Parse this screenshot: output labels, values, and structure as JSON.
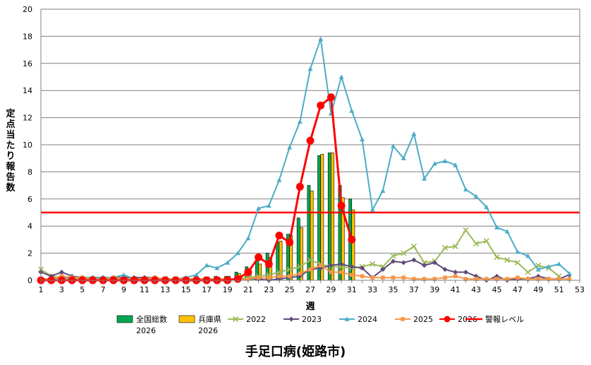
{
  "chart_data": {
    "type": "bar+line",
    "title": "手足口病(姫路市)",
    "xlabel": "週",
    "ylabel": "定点当たり報告数",
    "ylim": [
      0,
      20
    ],
    "yticks": [
      0,
      2,
      4,
      6,
      8,
      10,
      12,
      14,
      16,
      18,
      20
    ],
    "xlim": [
      1,
      53
    ],
    "xticks": [
      1,
      3,
      5,
      7,
      9,
      11,
      13,
      15,
      17,
      19,
      21,
      23,
      25,
      27,
      29,
      31,
      33,
      35,
      37,
      39,
      41,
      43,
      45,
      47,
      49,
      51,
      53
    ],
    "grid": "horizontal",
    "legend_position": "bottom",
    "bar_series": [
      {
        "name": "全国総数",
        "name2": "2026",
        "color": "#00a651",
        "x": [
          1,
          2,
          3,
          4,
          5,
          6,
          7,
          8,
          9,
          10,
          11,
          12,
          13,
          14,
          15,
          16,
          17,
          18,
          19,
          20,
          21,
          22,
          23,
          24,
          25,
          26,
          27,
          28,
          29,
          30,
          31
        ],
        "values": [
          0.1,
          0.1,
          0.1,
          0.1,
          0.1,
          0.1,
          0.1,
          0.1,
          0.1,
          0.1,
          0.1,
          0.1,
          0.1,
          0.1,
          0.1,
          0.1,
          0.2,
          0.3,
          0.3,
          0.6,
          1.0,
          1.5,
          2.0,
          2.8,
          3.4,
          4.6,
          7.0,
          9.2,
          9.4,
          7.0,
          6.0
        ]
      },
      {
        "name": "兵庫県",
        "name2": "2026",
        "color": "#ffc000",
        "x": [
          1,
          2,
          3,
          4,
          5,
          6,
          7,
          8,
          9,
          10,
          11,
          12,
          13,
          14,
          15,
          16,
          17,
          18,
          19,
          20,
          21,
          22,
          23,
          24,
          25,
          26,
          27,
          28,
          29,
          30,
          31
        ],
        "values": [
          0.1,
          0.1,
          0.1,
          0.1,
          0.1,
          0.1,
          0.1,
          0.1,
          0.1,
          0.1,
          0.1,
          0.1,
          0.1,
          0.1,
          0.1,
          0.1,
          0.2,
          0.2,
          0.3,
          0.5,
          0.8,
          1.2,
          1.7,
          2.9,
          3.3,
          3.9,
          6.6,
          9.3,
          9.4,
          6.1,
          5.2
        ]
      }
    ],
    "line_series": [
      {
        "name": "2022",
        "color": "#9bbb59",
        "marker": "x",
        "x": [
          1,
          2,
          3,
          4,
          5,
          6,
          7,
          8,
          9,
          10,
          11,
          12,
          13,
          14,
          15,
          16,
          17,
          18,
          19,
          20,
          21,
          22,
          23,
          24,
          25,
          26,
          27,
          28,
          29,
          30,
          31,
          32,
          33,
          34,
          35,
          36,
          37,
          38,
          39,
          40,
          41,
          42,
          43,
          44,
          45,
          46,
          47,
          48,
          49,
          50,
          51
        ],
        "values": [
          0.8,
          0.3,
          0.2,
          0.1,
          0.1,
          0.1,
          0.1,
          0.1,
          0.1,
          0.1,
          0.1,
          0.1,
          0.1,
          0.1,
          0.1,
          0.1,
          0.1,
          0.1,
          0.1,
          0.1,
          0.2,
          0.3,
          0.4,
          0.6,
          0.8,
          1.0,
          1.5,
          1.2,
          1.0,
          1.0,
          0.9,
          1.0,
          1.2,
          1.0,
          1.8,
          2.0,
          2.5,
          1.3,
          1.4,
          2.4,
          2.5,
          3.7,
          2.7,
          2.9,
          1.7,
          1.5,
          1.3,
          0.6,
          1.1,
          0.9,
          0.3
        ]
      },
      {
        "name": "2023",
        "color": "#604a7b",
        "marker": "diamond",
        "x": [
          1,
          2,
          3,
          4,
          5,
          6,
          7,
          8,
          9,
          10,
          11,
          12,
          13,
          14,
          15,
          16,
          17,
          18,
          19,
          20,
          21,
          22,
          23,
          24,
          25,
          26,
          27,
          28,
          29,
          30,
          31,
          32,
          33,
          34,
          35,
          36,
          37,
          38,
          39,
          40,
          41,
          42,
          43,
          44,
          45,
          46,
          47,
          48,
          49,
          50,
          51,
          52
        ],
        "values": [
          0.6,
          0.3,
          0.6,
          0.3,
          0.2,
          0.2,
          0.2,
          0.2,
          0.2,
          0.2,
          0.2,
          0.2,
          0.1,
          0.1,
          0.1,
          0.1,
          0.1,
          0.1,
          0.1,
          0.1,
          0.1,
          0.1,
          0.0,
          0.1,
          0.2,
          0.3,
          0.8,
          0.9,
          1.1,
          1.2,
          1.0,
          0.9,
          0.2,
          0.8,
          1.4,
          1.3,
          1.5,
          1.1,
          1.3,
          0.8,
          0.6,
          0.6,
          0.3,
          0.0,
          0.3,
          0.0,
          0.1,
          0.1,
          0.3,
          0.1,
          0.1,
          0.4
        ]
      },
      {
        "name": "2024",
        "color": "#4bacc6",
        "marker": "triangle",
        "x": [
          1,
          2,
          3,
          4,
          5,
          6,
          7,
          8,
          9,
          10,
          11,
          12,
          13,
          14,
          15,
          16,
          17,
          18,
          19,
          20,
          21,
          22,
          23,
          24,
          25,
          26,
          27,
          28,
          29,
          30,
          31,
          32,
          33,
          34,
          35,
          36,
          37,
          38,
          39,
          40,
          41,
          42,
          43,
          44,
          45,
          46,
          47,
          48,
          49,
          50,
          51,
          52
        ],
        "values": [
          0.1,
          0.1,
          0.2,
          0.2,
          0.2,
          0.2,
          0.2,
          0.2,
          0.4,
          0.1,
          0.1,
          0.1,
          0.1,
          0.1,
          0.2,
          0.4,
          1.1,
          0.9,
          1.3,
          2.0,
          3.1,
          5.3,
          5.5,
          7.4,
          9.8,
          11.7,
          15.6,
          17.8,
          12.3,
          15.0,
          12.5,
          10.4,
          5.2,
          6.6,
          9.9,
          9.0,
          10.8,
          7.5,
          8.6,
          8.8,
          8.5,
          6.7,
          6.2,
          5.4,
          3.9,
          3.6,
          2.1,
          1.8,
          0.8,
          1.0,
          1.2,
          0.5
        ]
      },
      {
        "name": "2025",
        "color": "#f79646",
        "marker": "square",
        "x": [
          1,
          2,
          3,
          4,
          5,
          6,
          7,
          8,
          9,
          10,
          11,
          12,
          13,
          14,
          15,
          16,
          17,
          18,
          19,
          20,
          21,
          22,
          23,
          24,
          25,
          26,
          27,
          28,
          29,
          30,
          31,
          32,
          33,
          34,
          35,
          36,
          37,
          38,
          39,
          40,
          41,
          42,
          43,
          44,
          45,
          46,
          47,
          48,
          49,
          50,
          51,
          52
        ],
        "values": [
          0.1,
          0.1,
          0.3,
          0.2,
          0.2,
          0.1,
          0.1,
          0.2,
          0.1,
          0.1,
          0.1,
          0.2,
          0.1,
          0.1,
          0.1,
          0.1,
          0.1,
          0.1,
          0.1,
          0.1,
          0.1,
          0.2,
          0.2,
          0.3,
          0.3,
          0.5,
          0.8,
          1.1,
          0.6,
          0.6,
          0.4,
          0.3,
          0.2,
          0.2,
          0.2,
          0.2,
          0.1,
          0.1,
          0.1,
          0.2,
          0.3,
          0.1,
          0.1,
          0.1,
          0.1,
          0.1,
          0.2,
          0.1,
          0.1,
          0.1,
          0.1,
          0.1
        ]
      },
      {
        "name": "2026",
        "color": "#ff0000",
        "marker": "circle",
        "x": [
          1,
          2,
          3,
          4,
          5,
          6,
          7,
          8,
          9,
          10,
          11,
          12,
          13,
          14,
          15,
          16,
          17,
          18,
          19,
          20,
          21,
          22,
          23,
          24,
          25,
          26,
          27,
          28,
          29,
          30,
          31
        ],
        "values": [
          0.0,
          0.0,
          0.0,
          0.0,
          0.0,
          0.0,
          0.0,
          0.0,
          0.0,
          0.0,
          0.0,
          0.0,
          0.0,
          0.0,
          0.0,
          0.0,
          0.0,
          0.0,
          0.0,
          0.1,
          0.6,
          1.7,
          1.2,
          3.3,
          2.8,
          6.9,
          10.3,
          12.9,
          13.5,
          5.5,
          3.0
        ]
      }
    ],
    "reference_line": {
      "name": "警報レベル",
      "value": 5,
      "color": "#ff0000"
    }
  }
}
